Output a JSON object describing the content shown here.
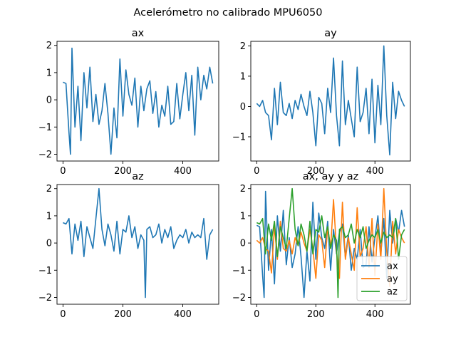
{
  "figure": {
    "suptitle": "Acelerómetro no calibrado MPU6050"
  },
  "chart_data": [
    {
      "type": "line",
      "title": "ax",
      "xlim": [
        -20,
        520
      ],
      "ylim": [
        -2.25,
        2.15
      ],
      "xticks": [
        0,
        200,
        400
      ],
      "yticks": [
        -2,
        -1,
        0,
        1,
        2
      ],
      "series": [
        {
          "color": "#1f77b4",
          "x": [
            0,
            10,
            20,
            25,
            30,
            40,
            50,
            60,
            70,
            80,
            90,
            100,
            110,
            120,
            130,
            140,
            150,
            160,
            170,
            180,
            190,
            200,
            210,
            220,
            230,
            240,
            250,
            260,
            270,
            280,
            290,
            300,
            310,
            320,
            330,
            340,
            350,
            360,
            370,
            380,
            390,
            400,
            410,
            420,
            430,
            440,
            450,
            460,
            470,
            480,
            490,
            500
          ],
          "values": [
            0.65,
            0.6,
            -1.2,
            -2.0,
            1.9,
            -1.0,
            0.5,
            -1.5,
            1.0,
            -0.3,
            1.2,
            -0.8,
            0.2,
            -0.9,
            -0.4,
            0.6,
            -0.5,
            -2.0,
            -0.3,
            -1.4,
            1.5,
            -0.6,
            1.1,
            0.2,
            -0.2,
            0.8,
            -1.0,
            0.5,
            -0.4,
            0.4,
            0.7,
            -0.5,
            0.3,
            -1.0,
            -0.2,
            -0.6,
            0.5,
            -0.9,
            -0.8,
            0.6,
            -0.7,
            0.2,
            1.0,
            -0.4,
            0.9,
            -1.3,
            1.2,
            0.0,
            0.9,
            0.4,
            1.2,
            0.6
          ]
        }
      ]
    },
    {
      "type": "line",
      "title": "ay",
      "xlim": [
        -20,
        520
      ],
      "ylim": [
        -1.8,
        2.15
      ],
      "xticks": [
        0,
        200,
        400
      ],
      "yticks": [
        -1,
        0,
        1,
        2
      ],
      "series": [
        {
          "color": "#1f77b4",
          "x": [
            0,
            10,
            20,
            30,
            40,
            50,
            60,
            70,
            80,
            90,
            100,
            110,
            120,
            130,
            140,
            150,
            160,
            170,
            180,
            190,
            200,
            210,
            220,
            230,
            240,
            250,
            260,
            270,
            280,
            290,
            300,
            310,
            320,
            330,
            340,
            350,
            360,
            370,
            380,
            390,
            400,
            410,
            420,
            430,
            440,
            450,
            460,
            470,
            480,
            490,
            500
          ],
          "values": [
            0.1,
            0.0,
            0.2,
            -0.2,
            -0.3,
            -1.1,
            0.6,
            -0.6,
            0.8,
            -0.2,
            -0.3,
            0.1,
            -0.4,
            0.2,
            -0.1,
            0.4,
            0.0,
            -0.3,
            0.5,
            -0.2,
            -1.3,
            0.3,
            0.1,
            -0.9,
            0.6,
            -0.2,
            1.6,
            -0.3,
            -1.3,
            1.5,
            -0.6,
            0.2,
            -0.4,
            -1.0,
            1.3,
            -0.5,
            -0.2,
            0.6,
            -0.9,
            0.9,
            -1.2,
            0.7,
            -0.6,
            2.0,
            -0.3,
            -1.6,
            0.8,
            -0.4,
            0.5,
            0.2,
            0.0
          ]
        }
      ]
    },
    {
      "type": "line",
      "title": "az",
      "xlim": [
        -20,
        520
      ],
      "ylim": [
        -2.25,
        2.15
      ],
      "xticks": [
        0,
        200,
        400
      ],
      "yticks": [
        -2,
        -1,
        0,
        1,
        2
      ],
      "series": [
        {
          "color": "#1f77b4",
          "x": [
            0,
            10,
            20,
            30,
            40,
            50,
            60,
            70,
            80,
            90,
            100,
            110,
            120,
            130,
            140,
            150,
            160,
            170,
            180,
            190,
            200,
            210,
            220,
            230,
            240,
            250,
            260,
            270,
            275,
            280,
            290,
            300,
            310,
            320,
            330,
            340,
            350,
            360,
            370,
            380,
            390,
            400,
            410,
            420,
            430,
            440,
            450,
            460,
            470,
            480,
            490,
            500
          ],
          "values": [
            0.75,
            0.7,
            0.9,
            -0.4,
            0.7,
            0.1,
            0.8,
            -0.5,
            0.6,
            0.2,
            -0.2,
            0.9,
            2.0,
            0.5,
            -0.1,
            0.7,
            0.3,
            -0.3,
            0.8,
            -0.4,
            0.5,
            0.4,
            1.0,
            0.2,
            0.6,
            -0.2,
            0.3,
            0.1,
            -2.0,
            0.5,
            0.6,
            0.2,
            0.3,
            0.7,
            0.0,
            0.5,
            0.2,
            0.6,
            -0.2,
            0.1,
            0.3,
            0.2,
            0.5,
            0.0,
            0.4,
            0.2,
            0.3,
            0.2,
            0.9,
            -0.6,
            0.3,
            0.5
          ]
        }
      ]
    },
    {
      "type": "line",
      "title": "ax, ay y az",
      "xlim": [
        -20,
        520
      ],
      "ylim": [
        -2.25,
        2.15
      ],
      "xticks": [
        0,
        200,
        400
      ],
      "yticks": [
        -2,
        -1,
        0,
        1,
        2
      ],
      "legend": {
        "placement": "lower-right",
        "entries": [
          "ax",
          "ay",
          "az"
        ]
      },
      "series": [
        {
          "name": "ax",
          "color": "#1f77b4",
          "x": [
            0,
            10,
            20,
            25,
            30,
            40,
            50,
            60,
            70,
            80,
            90,
            100,
            110,
            120,
            130,
            140,
            150,
            160,
            170,
            180,
            190,
            200,
            210,
            220,
            230,
            240,
            250,
            260,
            270,
            280,
            290,
            300,
            310,
            320,
            330,
            340,
            350,
            360,
            370,
            380,
            390,
            400,
            410,
            420,
            430,
            440,
            450,
            460,
            470,
            480,
            490,
            500
          ],
          "values": [
            0.65,
            0.6,
            -1.2,
            -2.0,
            1.9,
            -1.0,
            0.5,
            -1.5,
            1.0,
            -0.3,
            1.2,
            -0.8,
            0.2,
            -0.9,
            -0.4,
            0.6,
            -0.5,
            -2.0,
            -0.3,
            -1.4,
            1.5,
            -0.6,
            1.1,
            0.2,
            -0.2,
            0.8,
            -1.0,
            0.5,
            -0.4,
            0.4,
            0.7,
            -0.5,
            0.3,
            -1.0,
            -0.2,
            -0.6,
            0.5,
            -0.9,
            -0.8,
            0.6,
            -0.7,
            0.2,
            1.0,
            -0.4,
            0.9,
            -1.3,
            1.2,
            0.0,
            0.9,
            0.4,
            1.2,
            0.6
          ]
        },
        {
          "name": "ay",
          "color": "#ff7f0e",
          "x": [
            0,
            10,
            20,
            30,
            40,
            50,
            60,
            70,
            80,
            90,
            100,
            110,
            120,
            130,
            140,
            150,
            160,
            170,
            180,
            190,
            200,
            210,
            220,
            230,
            240,
            250,
            260,
            270,
            280,
            290,
            300,
            310,
            320,
            330,
            340,
            350,
            360,
            370,
            380,
            390,
            400,
            410,
            420,
            430,
            440,
            450,
            460,
            470,
            480,
            490,
            500
          ],
          "values": [
            0.1,
            0.0,
            0.2,
            -0.2,
            -0.3,
            -1.1,
            0.6,
            -0.6,
            0.8,
            -0.2,
            -0.3,
            0.1,
            -0.4,
            0.2,
            -0.1,
            0.4,
            0.0,
            -0.3,
            0.5,
            -0.2,
            -1.3,
            0.3,
            0.1,
            -0.9,
            0.6,
            -0.2,
            1.6,
            -0.3,
            -1.3,
            1.5,
            -0.6,
            0.2,
            -0.4,
            -1.0,
            1.3,
            -0.5,
            -0.2,
            0.6,
            -0.9,
            0.9,
            -1.2,
            0.7,
            -0.6,
            2.0,
            -0.3,
            -1.6,
            0.8,
            -0.4,
            0.5,
            0.2,
            0.0
          ]
        },
        {
          "name": "az",
          "color": "#2ca02c",
          "x": [
            0,
            10,
            20,
            30,
            40,
            50,
            60,
            70,
            80,
            90,
            100,
            110,
            120,
            130,
            140,
            150,
            160,
            170,
            180,
            190,
            200,
            210,
            220,
            230,
            240,
            250,
            260,
            270,
            275,
            280,
            290,
            300,
            310,
            320,
            330,
            340,
            350,
            360,
            370,
            380,
            390,
            400,
            410,
            420,
            430,
            440,
            450,
            460,
            470,
            480,
            490,
            500
          ],
          "values": [
            0.75,
            0.7,
            0.9,
            -0.4,
            0.7,
            0.1,
            0.8,
            -0.5,
            0.6,
            0.2,
            -0.2,
            0.9,
            2.0,
            0.5,
            -0.1,
            0.7,
            0.3,
            -0.3,
            0.8,
            -0.4,
            0.5,
            0.4,
            1.0,
            0.2,
            0.6,
            -0.2,
            0.3,
            0.1,
            -2.0,
            0.5,
            0.6,
            0.2,
            0.3,
            0.7,
            0.0,
            0.5,
            0.2,
            0.6,
            -0.2,
            0.1,
            0.3,
            0.2,
            0.5,
            0.0,
            0.4,
            0.2,
            0.3,
            0.2,
            0.9,
            -0.6,
            0.3,
            0.5
          ]
        }
      ]
    }
  ]
}
